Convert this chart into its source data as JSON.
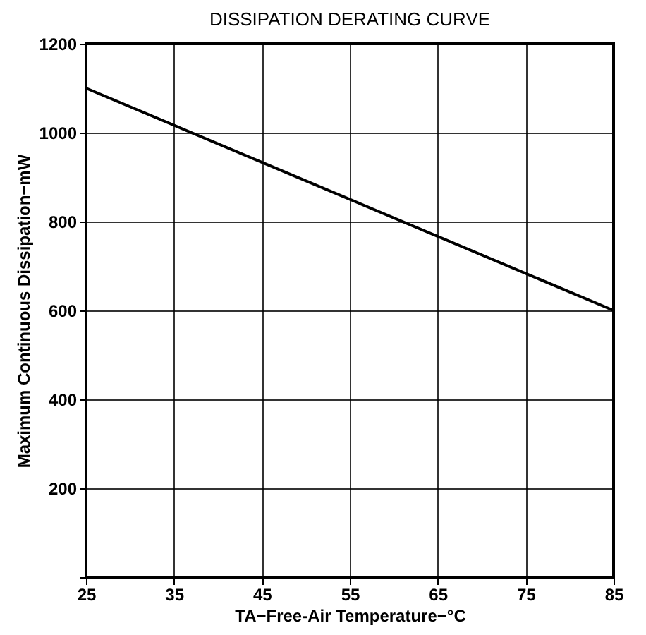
{
  "chart_data": {
    "type": "line",
    "title": "DISSIPATION DERATING CURVE",
    "xlabel": "TA−Free-Air Temperature−°C",
    "ylabel": "Maximum Continuous Dissipation−mW",
    "x": [
      25,
      85
    ],
    "series": [
      {
        "color": "#000000",
        "values": [
          1100,
          600
        ]
      }
    ],
    "xlim": [
      25,
      85
    ],
    "xticks": [
      25,
      35,
      45,
      55,
      65,
      75,
      85
    ],
    "ylim": [
      0,
      1200
    ],
    "yticks": [
      {
        "value": 0,
        "label": null
      },
      200,
      400,
      600,
      800,
      1000,
      1200
    ],
    "grid": true,
    "marker": "none",
    "line_style": "solid"
  }
}
